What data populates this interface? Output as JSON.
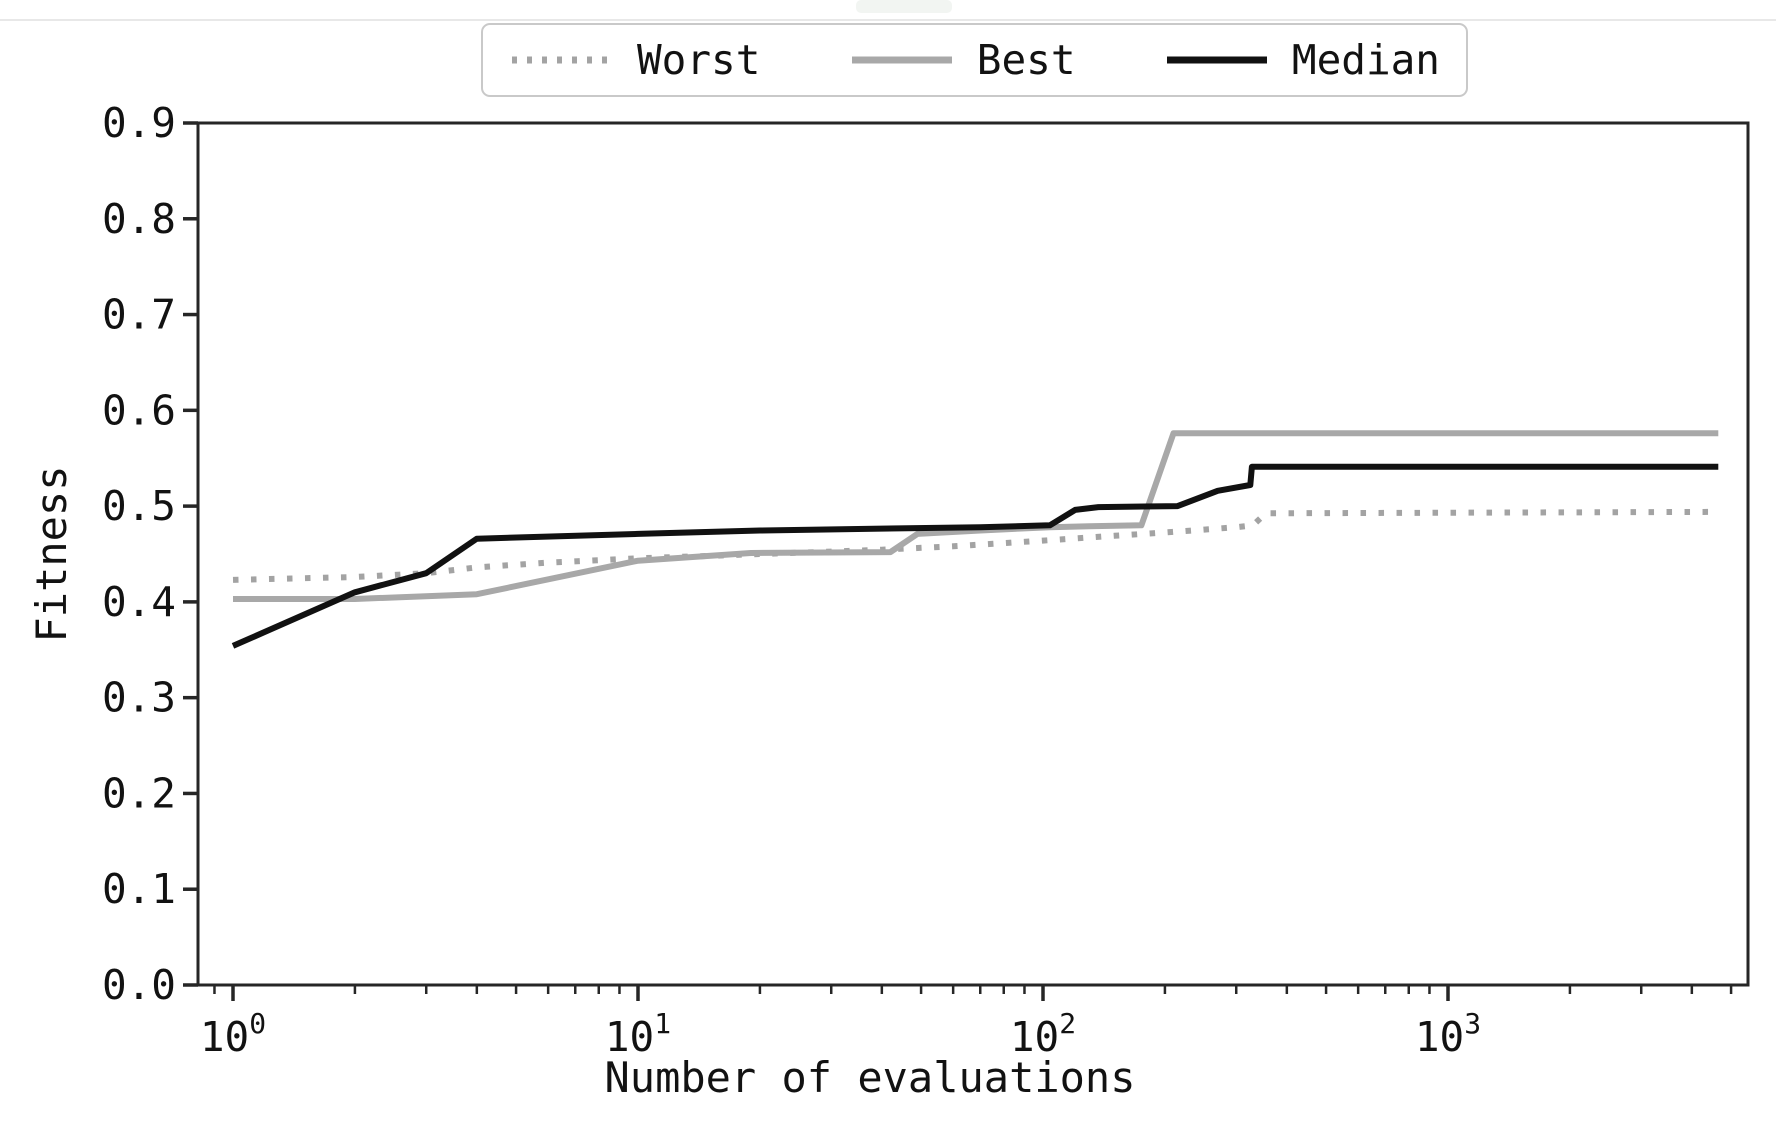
{
  "figure": {
    "xlabel": "Number of evaluations",
    "ylabel": "Fitness"
  },
  "legend": {
    "position": "top-center-outside",
    "items": [
      {
        "label": "Worst",
        "style": "dotted",
        "color": "#a3a3a3"
      },
      {
        "label": "Best",
        "style": "solid",
        "color": "#a8a8a8"
      },
      {
        "label": "Median",
        "style": "solid",
        "color": "#111111"
      }
    ]
  },
  "chart_data": {
    "type": "line",
    "title": "",
    "xlabel": "Number of evaluations",
    "ylabel": "Fitness",
    "x_scale": "log",
    "y_scale": "linear",
    "xlim": [
      0.82,
      5500
    ],
    "ylim": [
      0.0,
      0.9
    ],
    "grid": false,
    "legend_position": "upper center, outside axes",
    "y_ticks": [
      0.0,
      0.1,
      0.2,
      0.3,
      0.4,
      0.5,
      0.6,
      0.7,
      0.8,
      0.9
    ],
    "y_tick_labels": [
      "0.0",
      "0.1",
      "0.2",
      "0.3",
      "0.4",
      "0.5",
      "0.6",
      "0.7",
      "0.8",
      "0.9"
    ],
    "x_major_ticks": [
      1,
      10,
      100,
      1000
    ],
    "x_major_tick_labels": [
      {
        "base": "10",
        "exp": "0"
      },
      {
        "base": "10",
        "exp": "1"
      },
      {
        "base": "10",
        "exp": "2"
      },
      {
        "base": "10",
        "exp": "3"
      }
    ],
    "x_minor_ticks_rule": "2..9 per decade from 0.9 to 5000",
    "series": [
      {
        "name": "Worst",
        "color": "#a3a3a3",
        "line_style": "dotted",
        "line_width": 6,
        "points": [
          [
            1,
            0.423
          ],
          [
            2,
            0.426
          ],
          [
            3,
            0.43
          ],
          [
            4,
            0.436
          ],
          [
            6,
            0.441
          ],
          [
            10,
            0.4455
          ],
          [
            15,
            0.448
          ],
          [
            20,
            0.45
          ],
          [
            30,
            0.4525
          ],
          [
            40,
            0.4545
          ],
          [
            60,
            0.458
          ],
          [
            100,
            0.464
          ],
          [
            150,
            0.469
          ],
          [
            200,
            0.4725
          ],
          [
            250,
            0.4755
          ],
          [
            300,
            0.478
          ],
          [
            330,
            0.48
          ],
          [
            355,
            0.4925
          ],
          [
            4650,
            0.494
          ]
        ]
      },
      {
        "name": "Best",
        "color": "#a8a8a8",
        "line_style": "solid",
        "line_width": 6,
        "points": [
          [
            1,
            0.403
          ],
          [
            2,
            0.403
          ],
          [
            4,
            0.408
          ],
          [
            10,
            0.443
          ],
          [
            19,
            0.451
          ],
          [
            42,
            0.452
          ],
          [
            49,
            0.471
          ],
          [
            70,
            0.4745
          ],
          [
            104,
            0.478
          ],
          [
            130,
            0.479
          ],
          [
            175,
            0.48
          ],
          [
            210,
            0.576
          ],
          [
            4650,
            0.576
          ]
        ]
      },
      {
        "name": "Median",
        "color": "#111111",
        "line_style": "solid",
        "line_width": 6,
        "points": [
          [
            1,
            0.354
          ],
          [
            2,
            0.41
          ],
          [
            3,
            0.43
          ],
          [
            4,
            0.466
          ],
          [
            10,
            0.471
          ],
          [
            20,
            0.4745
          ],
          [
            40,
            0.4765
          ],
          [
            70,
            0.478
          ],
          [
            104,
            0.48
          ],
          [
            120,
            0.496
          ],
          [
            137,
            0.499
          ],
          [
            215,
            0.5
          ],
          [
            270,
            0.516
          ],
          [
            325,
            0.522
          ],
          [
            328,
            0.541
          ],
          [
            4650,
            0.541
          ]
        ]
      }
    ]
  }
}
